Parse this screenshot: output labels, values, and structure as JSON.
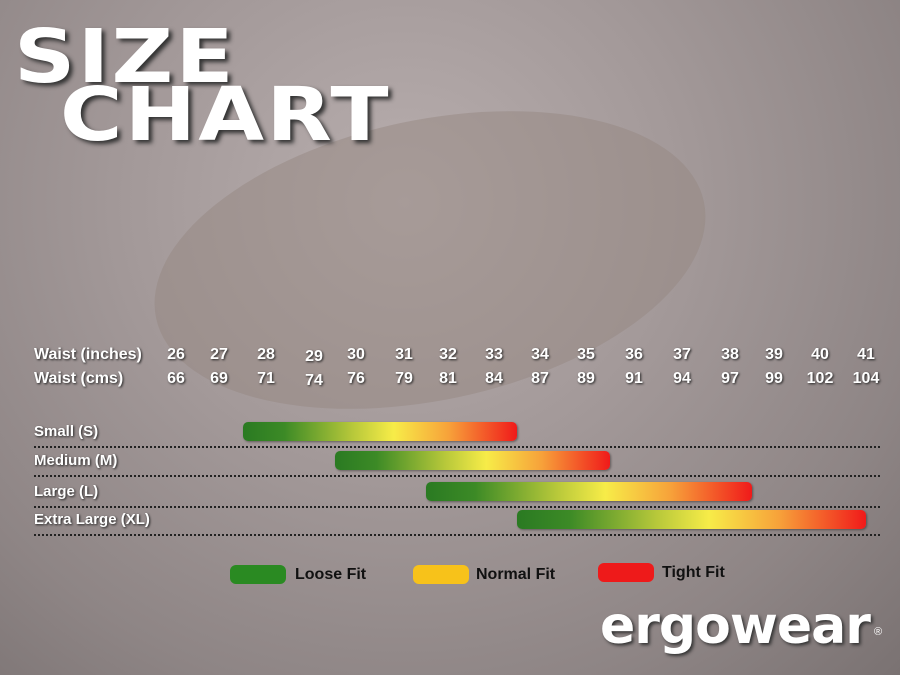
{
  "title": {
    "line1": "SIZE",
    "line2": "CHART"
  },
  "chart_data": {
    "type": "range-bar",
    "rows": [
      {
        "label": "Waist (inches)",
        "values": [
          "26",
          "27",
          "28",
          "29",
          "30",
          "31",
          "32",
          "33",
          "34",
          "35",
          "36",
          "37",
          "38",
          "39",
          "40",
          "41"
        ]
      },
      {
        "label": "Waist (cms)",
        "values": [
          "66",
          "69",
          "71",
          "74",
          "76",
          "79",
          "81",
          "84",
          "87",
          "89",
          "91",
          "94",
          "97",
          "99",
          "102",
          "104"
        ]
      }
    ],
    "series": [
      {
        "name": "Small (S)",
        "from": 27.5,
        "to": 33.5
      },
      {
        "name": "Medium (M)",
        "from": 29.5,
        "to": 35.5
      },
      {
        "name": "Large (L)",
        "from": 31.5,
        "to": 38.5
      },
      {
        "name": "Extra Large (XL)",
        "from": 33.5,
        "to": 41.3
      }
    ],
    "gradient": [
      "#2a7a22",
      "#f7ec48",
      "#f01a1a"
    ],
    "legend": [
      {
        "label": "Loose Fit",
        "color": "#2a8a22"
      },
      {
        "label": "Normal Fit",
        "color": "#f7c21a"
      },
      {
        "label": "Tight Fit",
        "color": "#ee1a1a"
      }
    ]
  },
  "brand": {
    "logo": "ergowear",
    "registered": "®"
  }
}
